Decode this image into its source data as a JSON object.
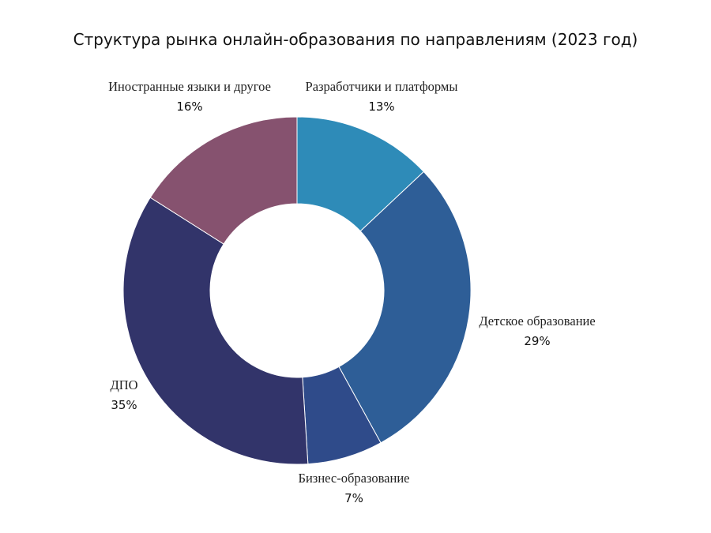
{
  "chart_data": {
    "type": "pie",
    "title": "Структура рынка онлайн-образования по направлениям (2023 год)",
    "donut": true,
    "slices": [
      {
        "label": "Разработчики и платформы",
        "value": 13,
        "value_label": "13%",
        "color": "#2e8bb8"
      },
      {
        "label": "Детское образование",
        "value": 29,
        "value_label": "29%",
        "color": "#2e5e97"
      },
      {
        "label": "Бизнес-образование",
        "value": 7,
        "value_label": "7%",
        "color": "#2f4b8a"
      },
      {
        "label": "ДПО",
        "value": 35,
        "value_label": "35%",
        "color": "#32346a"
      },
      {
        "label": "Иностранные языки и другое",
        "value": 16,
        "value_label": "16%",
        "color": "#86526f"
      }
    ]
  }
}
